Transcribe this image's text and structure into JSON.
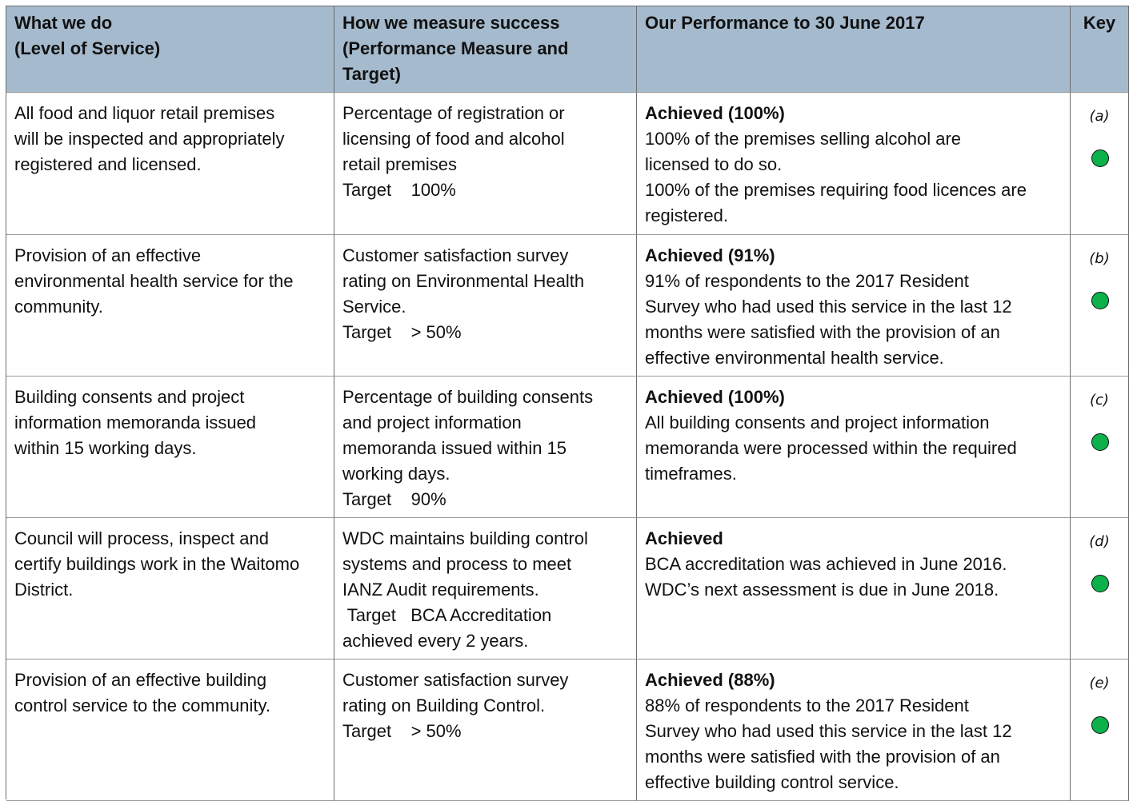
{
  "table": {
    "headers": [
      [
        "What we do",
        "(Level of Service)"
      ],
      [
        "How we measure success",
        "(Performance Measure and",
        "Target)"
      ],
      [
        "Our Performance to 30 June 2017"
      ],
      [
        "Key"
      ]
    ],
    "rows": [
      {
        "service": [
          "All food and liquor retail premises",
          "will be inspected and appropriately",
          "registered and licensed."
        ],
        "measure": [
          "Percentage of registration or",
          "licensing of food and alcohol",
          "retail premises",
          "Target    100%"
        ],
        "result_heading": "Achieved (100%)",
        "result": [
          "100% of the premises selling alcohol are",
          "licensed to do so.",
          "100% of the premises requiring food licences are",
          "registered."
        ],
        "key": "(a)"
      },
      {
        "service": [
          "Provision of an effective",
          "environmental health service for the",
          "community."
        ],
        "measure": [
          "Customer satisfaction survey",
          "rating on Environmental Health",
          "Service.",
          "Target    > 50%"
        ],
        "result_heading": "Achieved (91%)",
        "result": [
          "91% of respondents to the 2017 Resident",
          "Survey who had used this service in the last 12",
          "months were satisfied with the provision of an",
          "effective environmental health service."
        ],
        "key": "(b)"
      },
      {
        "service": [
          "Building consents and project",
          "information memoranda issued",
          "within 15 working days."
        ],
        "measure": [
          "Percentage of building consents",
          "and project information",
          "memoranda issued within 15",
          "working days.",
          "Target    90%"
        ],
        "result_heading": "Achieved (100%)",
        "result": [
          "All building consents and project information",
          "memoranda were processed within the required",
          "timeframes."
        ],
        "key": "(c)"
      },
      {
        "service": [
          "Council will process, inspect and",
          "certify buildings work in the Waitomo",
          "District."
        ],
        "measure": [
          "WDC maintains building control",
          "systems and process to meet",
          "IANZ Audit requirements.",
          " Target   BCA Accreditation",
          "achieved every 2 years."
        ],
        "result_heading": "Achieved",
        "result": [
          "BCA accreditation was achieved in June 2016.",
          "WDC’s next assessment is due in June 2018."
        ],
        "key": "(d)"
      },
      {
        "service": [
          "Provision of an effective building",
          "control service to the community."
        ],
        "measure": [
          "Customer satisfaction survey",
          "rating on Building Control.",
          "Target    > 50%"
        ],
        "result_heading": "Achieved (88%)",
        "result": [
          "88% of respondents to the 2017 Resident",
          "Survey who had used this service in the last 12",
          "months were satisfied with the provision of an",
          "effective building control service."
        ],
        "key": "(e)"
      }
    ]
  }
}
